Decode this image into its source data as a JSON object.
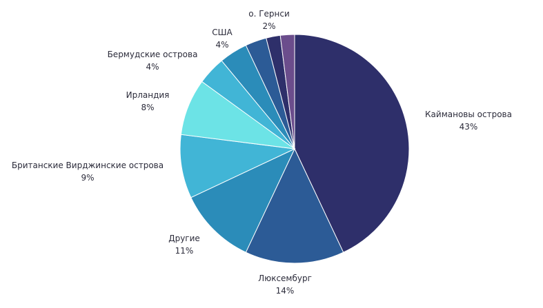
{
  "chart_data": {
    "type": "pie",
    "slices": [
      {
        "label": "Каймановы острова",
        "value": 43,
        "value_label": "43%",
        "color": "#2e2f6a"
      },
      {
        "label": "Люксембург",
        "value": 14,
        "value_label": "14%",
        "color": "#2c5b96"
      },
      {
        "label": "Другие",
        "value": 11,
        "value_label": "11%",
        "color": "#2b8cb9"
      },
      {
        "label": "Британские Вирджинские острова",
        "value": 9,
        "value_label": "9%",
        "color": "#41b5d6"
      },
      {
        "label": "Ирландия",
        "value": 8,
        "value_label": "8%",
        "color": "#6ce3e6"
      },
      {
        "label": "Бермудские острова",
        "value": 4,
        "value_label": "4%",
        "color": "#41b5d6"
      },
      {
        "label": "США",
        "value": 4,
        "value_label": "4%",
        "color": "#2b8cb9"
      },
      {
        "label": "",
        "value": 3,
        "value_label": "",
        "color": "#2c5b96"
      },
      {
        "label": "",
        "value": 2,
        "value_label": "",
        "color": "#2e2f6a"
      },
      {
        "label": "о. Гернси",
        "value": 2,
        "value_label": "2%",
        "color": "#6b4d8c"
      }
    ]
  }
}
